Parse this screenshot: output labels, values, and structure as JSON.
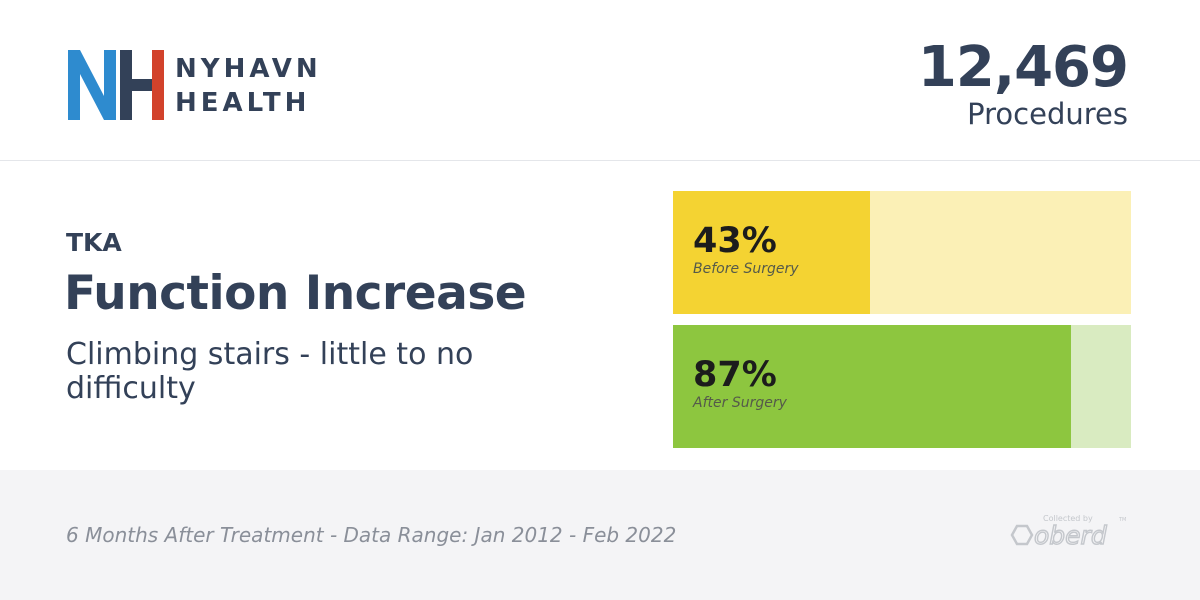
{
  "brand": {
    "name_line1": "NYHAVN",
    "name_line2": "HEALTH",
    "mark_colors": {
      "n": "#2e8bcf",
      "h_left": "#334158",
      "h_right": "#d2422b"
    }
  },
  "procedures": {
    "count": "12,469",
    "label": "Procedures"
  },
  "metric": {
    "procedure": "TKA",
    "title": "Function Increase",
    "description": "Climbing stairs - little to no difficulty"
  },
  "chart_data": {
    "type": "bar",
    "orientation": "horizontal",
    "categories": [
      "Before Surgery",
      "After Surgery"
    ],
    "values": [
      43,
      87
    ],
    "value_labels": [
      "43%",
      "87%"
    ],
    "xlim": [
      0,
      100
    ],
    "colors": [
      {
        "fill": "#f4d332",
        "track": "#fbf0b6"
      },
      {
        "fill": "#8dc63f",
        "track": "#d9ebc1"
      }
    ]
  },
  "footer": {
    "note": "6 Months After Treatment - Data Range: Jan 2012 - Feb 2022",
    "credit_prefix": "Collected by",
    "credit_brand": "oberd",
    "credit_mark": "TM"
  }
}
